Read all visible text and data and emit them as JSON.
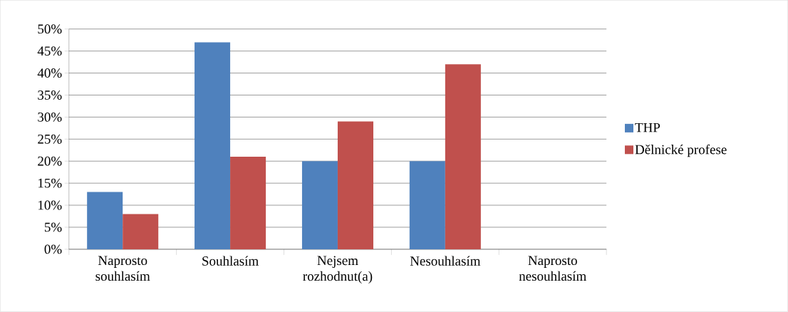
{
  "chart_data": {
    "type": "bar",
    "categories": [
      "Naprosto souhlasím",
      "Souhlasím",
      "Nejsem rozhodnut(a)",
      "Nesouhlasím",
      "Naprosto nesouhlasím"
    ],
    "series": [
      {
        "name": "THP",
        "color": "#4f81bd",
        "values": [
          13,
          47,
          20,
          20,
          0
        ]
      },
      {
        "name": "Dělnické profese",
        "color": "#c0504d",
        "values": [
          8,
          21,
          29,
          42,
          0
        ]
      }
    ],
    "ylim": [
      0,
      50
    ],
    "yticks": [
      {
        "value": 0,
        "label": "0%"
      },
      {
        "value": 5,
        "label": "5%"
      },
      {
        "value": 10,
        "label": "10%"
      },
      {
        "value": 15,
        "label": "15%"
      },
      {
        "value": 20,
        "label": "20%"
      },
      {
        "value": 25,
        "label": "25%"
      },
      {
        "value": 30,
        "label": "30%"
      },
      {
        "value": 35,
        "label": "35%"
      },
      {
        "value": 40,
        "label": "40%"
      },
      {
        "value": 45,
        "label": "45%"
      },
      {
        "value": 50,
        "label": "50%"
      }
    ],
    "grid": "y",
    "legend": "right"
  }
}
